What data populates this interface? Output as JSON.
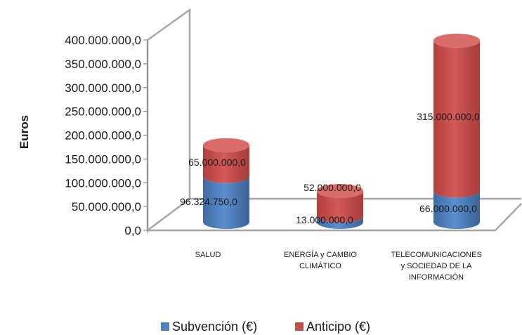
{
  "chart_data": {
    "type": "bar",
    "style": "3d-stacked-cylinder",
    "title": "",
    "xlabel": "",
    "ylabel": "Euros",
    "ylim": [
      0,
      400000000
    ],
    "y_ticks": [
      "0,0",
      "50.000.000,0",
      "100.000.000,0",
      "150.000.000,0",
      "200.000.000,0",
      "250.000.000,0",
      "300.000.000,0",
      "350.000.000,0",
      "400.000.000,0"
    ],
    "categories": [
      [
        "SALUD"
      ],
      [
        "ENERGÍA y CAMBIO",
        "CLIMÁTICO"
      ],
      [
        "TELECOMUNICACIONES",
        "y SOCIEDAD DE LA",
        "INFORMACIÓN"
      ]
    ],
    "series": [
      {
        "name": "Subvención (€)",
        "color": "#4f81bd",
        "values": [
          96324750,
          13000000,
          66000000
        ],
        "labels": [
          "96.324.750,0",
          "13.000.000,0",
          "66.000.000,0"
        ]
      },
      {
        "name": "Anticipo (€)",
        "color": "#c0504d",
        "values": [
          65000000,
          52000000,
          315000000
        ],
        "labels": [
          "65.000.000,0",
          "52.000.000,0",
          "315.000.000,0"
        ]
      }
    ],
    "grid": false,
    "legend_position": "bottom"
  }
}
